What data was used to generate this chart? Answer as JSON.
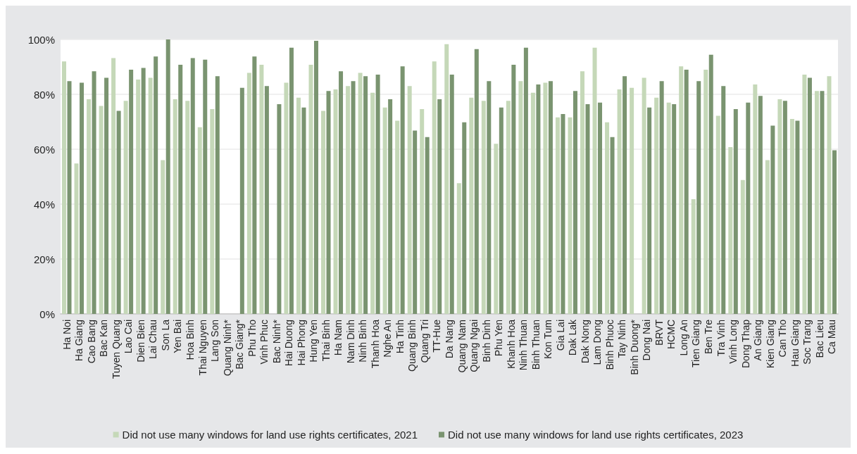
{
  "chart_data": {
    "type": "bar",
    "categories": [
      "Ha Noi",
      "Ha Giang",
      "Cao Bang",
      "Bac Kan",
      "Tuyen Quang",
      "Lao Cai",
      "Dien Bien",
      "Lai Chau",
      "Son La",
      "Yen Bai",
      "Hoa Binh",
      "Thai Nguyen",
      "Lang Son",
      "Quang Ninh*",
      "Bac Giang*",
      "Phu Tho",
      "Vinh Phuc",
      "Bac Ninh*",
      "Hai Duong",
      "Hai Phong",
      "Hung Yen",
      "Thai Binh",
      "Ha Nam",
      "Nam Dinh",
      "Ninh Binh",
      "Thanh Hoa",
      "Nghe An",
      "Ha Tinh",
      "Quang Binh",
      "Quang Tri",
      "TT-Hue",
      "Da Nang",
      "Quang Nam",
      "Quang Ngai",
      "Binh Dinh",
      "Phu Yen",
      "Khanh Hoa",
      "Ninh Thuan",
      "Binh Thuan",
      "Kon Tum",
      "Gia Lai",
      "Dak Lak",
      "Dak Nong",
      "Lam Dong",
      "Binh Phuoc",
      "Tay Ninh",
      "Binh Duong*",
      "Dong Nai",
      "BRVT",
      "HCMC",
      "Long An",
      "Tien Giang",
      "Ben Tre",
      "Tra Vinh",
      "Vinh Long",
      "Dong Thap",
      "An Giang",
      "Kien Giang",
      "Can Tho",
      "Hau Giang",
      "Soc Trang",
      "Bac Lieu",
      "Ca Mau"
    ],
    "series": [
      {
        "name": "Did not use many windows for land use rights certificates, 2021",
        "color": "#c5d8b8",
        "values": [
          92,
          54.8,
          78.2,
          75.8,
          93.2,
          77.6,
          85.4,
          86,
          56,
          78.2,
          77.6,
          68,
          74.6,
          null,
          null,
          87.8,
          90.8,
          null,
          84.2,
          78.8,
          90.8,
          74,
          81.8,
          83,
          87.8,
          80.6,
          75.2,
          70.4,
          83,
          74.6,
          92,
          98.3,
          47.6,
          78.8,
          77.6,
          62,
          77.6,
          84.8,
          80.6,
          84.2,
          71.6,
          71.6,
          88.4,
          97,
          69.8,
          81.8,
          82.4,
          86,
          78.8,
          77,
          90.2,
          41.8,
          89,
          72.2,
          60.8,
          48.8,
          83.6,
          56,
          78.2,
          71,
          87.2,
          81.2,
          86.6
        ]
      },
      {
        "name": "Did not use many windows for land use rights certificates, 2023",
        "color": "#7a9470",
        "values": [
          84.8,
          84.2,
          88.4,
          86,
          74,
          89,
          89.6,
          93.8,
          100,
          90.8,
          93.2,
          92.6,
          86.6,
          null,
          82.4,
          93.8,
          83,
          76.4,
          97,
          75.2,
          99.5,
          81.2,
          88.4,
          84.8,
          86.6,
          87.2,
          78.2,
          90.2,
          66.8,
          64.4,
          78.2,
          87.2,
          69.8,
          96.5,
          84.8,
          75.2,
          90.8,
          97,
          83.6,
          84.8,
          72.8,
          81.2,
          76.4,
          77,
          64.4,
          86.6,
          null,
          75.2,
          84.8,
          76.4,
          89,
          84.8,
          94.4,
          83,
          74.6,
          77,
          79.4,
          68.6,
          77.6,
          70.4,
          86,
          81.2,
          59.6
        ]
      }
    ],
    "ylim": [
      0,
      100
    ],
    "yticks": [
      {
        "value": 0,
        "label": "0%"
      },
      {
        "value": 20,
        "label": "20%"
      },
      {
        "value": 40,
        "label": "40%"
      },
      {
        "value": 60,
        "label": "60%"
      },
      {
        "value": 80,
        "label": "80%"
      },
      {
        "value": 100,
        "label": "100%"
      }
    ],
    "grid": "y",
    "legend": "bottom"
  }
}
